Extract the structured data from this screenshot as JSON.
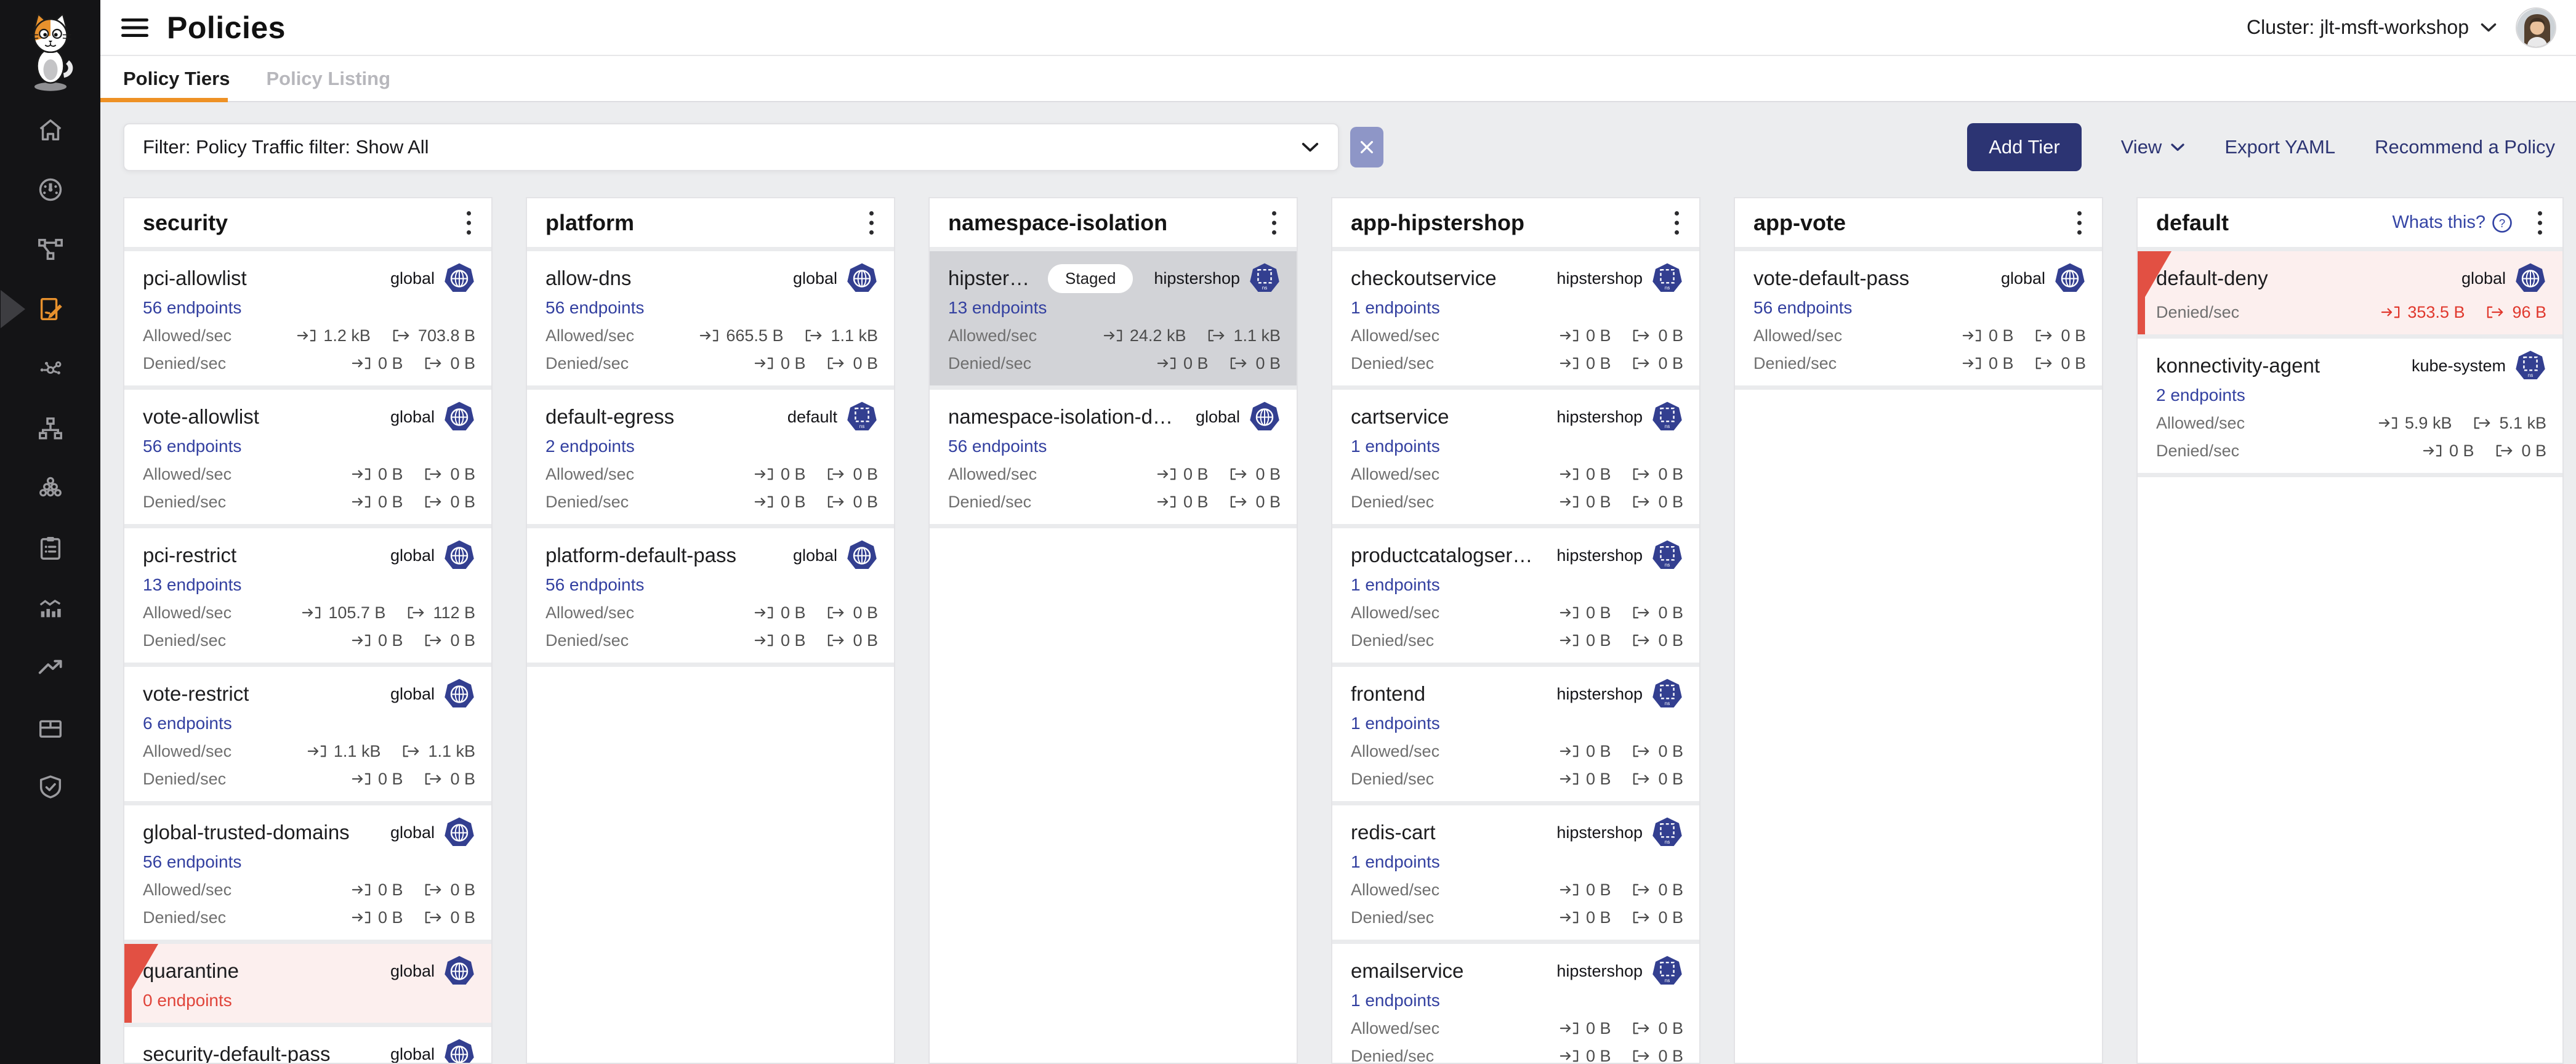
{
  "header": {
    "title": "Policies",
    "cluster_label": "Cluster: jlt-msft-workshop"
  },
  "tabs": [
    {
      "label": "Policy Tiers",
      "active": true
    },
    {
      "label": "Policy Listing",
      "active": false
    }
  ],
  "filter": {
    "value": "Filter: Policy Traffic filter: Show All"
  },
  "toolbar": {
    "add_tier": "Add Tier",
    "view": "View",
    "export_yaml": "Export YAML",
    "recommend": "Recommend a Policy"
  },
  "colors": {
    "accent_orange": "#EE9125",
    "brand_navy": "#2C3473",
    "link_indigo": "#3340A0",
    "badge_navy": "#333F90",
    "danger_red": "#E0443A",
    "alert_card_bg": "#FCEFEE",
    "staged_card_bg": "#D2D3D7"
  },
  "icons": {
    "sidebar": [
      "home-icon",
      "dashboard-icon",
      "service-graph-icon",
      "policies-icon",
      "network-sets-icon",
      "endpoints-icon",
      "workloads-icon",
      "compliance-icon",
      "activity-icon",
      "trends-icon",
      "packages-icon",
      "threat-defense-icon"
    ],
    "chrome": [
      "menu-icon",
      "chevron-down-icon",
      "user-avatar",
      "close-icon"
    ],
    "cards": [
      "ingress-icon",
      "egress-icon",
      "global-badge-icon",
      "namespace-badge-icon",
      "kebab-menu-icon",
      "question-circle-icon"
    ]
  },
  "tiers": [
    {
      "name": "security",
      "cards": [
        {
          "name": "pci-allowlist",
          "scope": "global",
          "scope_type": "global",
          "endpoints": "56 endpoints",
          "rows": [
            {
              "label": "Allowed/sec",
              "in": "1.2 kB",
              "out": "703.8 B"
            },
            {
              "label": "Denied/sec",
              "in": "0 B",
              "out": "0 B"
            }
          ]
        },
        {
          "name": "vote-allowlist",
          "scope": "global",
          "scope_type": "global",
          "endpoints": "56 endpoints",
          "rows": [
            {
              "label": "Allowed/sec",
              "in": "0 B",
              "out": "0 B"
            },
            {
              "label": "Denied/sec",
              "in": "0 B",
              "out": "0 B"
            }
          ]
        },
        {
          "name": "pci-restrict",
          "scope": "global",
          "scope_type": "global",
          "endpoints": "13 endpoints",
          "rows": [
            {
              "label": "Allowed/sec",
              "in": "105.7 B",
              "out": "112 B"
            },
            {
              "label": "Denied/sec",
              "in": "0 B",
              "out": "0 B"
            }
          ]
        },
        {
          "name": "vote-restrict",
          "scope": "global",
          "scope_type": "global",
          "endpoints": "6 endpoints",
          "rows": [
            {
              "label": "Allowed/sec",
              "in": "1.1 kB",
              "out": "1.1 kB"
            },
            {
              "label": "Denied/sec",
              "in": "0 B",
              "out": "0 B"
            }
          ]
        },
        {
          "name": "global-trusted-domains",
          "scope": "global",
          "scope_type": "global",
          "endpoints": "56 endpoints",
          "rows": [
            {
              "label": "Allowed/sec",
              "in": "0 B",
              "out": "0 B"
            },
            {
              "label": "Denied/sec",
              "in": "0 B",
              "out": "0 B"
            }
          ]
        },
        {
          "name": "quarantine",
          "scope": "global",
          "scope_type": "global",
          "alert": true,
          "endpoints": "0 endpoints",
          "rows": []
        },
        {
          "name": "security-default-pass",
          "scope": "global",
          "scope_type": "global",
          "rows": []
        }
      ]
    },
    {
      "name": "platform",
      "cards": [
        {
          "name": "allow-dns",
          "scope": "global",
          "scope_type": "global",
          "endpoints": "56 endpoints",
          "rows": [
            {
              "label": "Allowed/sec",
              "in": "665.5 B",
              "out": "1.1 kB"
            },
            {
              "label": "Denied/sec",
              "in": "0 B",
              "out": "0 B"
            }
          ]
        },
        {
          "name": "default-egress",
          "scope": "default",
          "scope_type": "namespace",
          "endpoints": "2 endpoints",
          "rows": [
            {
              "label": "Allowed/sec",
              "in": "0 B",
              "out": "0 B"
            },
            {
              "label": "Denied/sec",
              "in": "0 B",
              "out": "0 B"
            }
          ]
        },
        {
          "name": "platform-default-pass",
          "scope": "global",
          "scope_type": "global",
          "endpoints": "56 endpoints",
          "rows": [
            {
              "label": "Allowed/sec",
              "in": "0 B",
              "out": "0 B"
            },
            {
              "label": "Denied/sec",
              "in": "0 B",
              "out": "0 B"
            }
          ]
        }
      ]
    },
    {
      "name": "namespace-isolation",
      "cards": [
        {
          "name": "hipstershop-gh…",
          "staged": true,
          "staged_label": "Staged",
          "scope": "hipstershop",
          "scope_type": "namespace",
          "endpoints": "13 endpoints",
          "rows": [
            {
              "label": "Allowed/sec",
              "in": "24.2 kB",
              "out": "1.1 kB"
            },
            {
              "label": "Denied/sec",
              "in": "0 B",
              "out": "0 B"
            }
          ]
        },
        {
          "name": "namespace-isolation-default-p…",
          "scope": "global",
          "scope_type": "global",
          "endpoints": "56 endpoints",
          "rows": [
            {
              "label": "Allowed/sec",
              "in": "0 B",
              "out": "0 B"
            },
            {
              "label": "Denied/sec",
              "in": "0 B",
              "out": "0 B"
            }
          ]
        }
      ]
    },
    {
      "name": "app-hipstershop",
      "cards": [
        {
          "name": "checkoutservice",
          "scope": "hipstershop",
          "scope_type": "namespace",
          "endpoints": "1 endpoints",
          "rows": [
            {
              "label": "Allowed/sec",
              "in": "0 B",
              "out": "0 B"
            },
            {
              "label": "Denied/sec",
              "in": "0 B",
              "out": "0 B"
            }
          ]
        },
        {
          "name": "cartservice",
          "scope": "hipstershop",
          "scope_type": "namespace",
          "endpoints": "1 endpoints",
          "rows": [
            {
              "label": "Allowed/sec",
              "in": "0 B",
              "out": "0 B"
            },
            {
              "label": "Denied/sec",
              "in": "0 B",
              "out": "0 B"
            }
          ]
        },
        {
          "name": "productcatalogservice",
          "scope": "hipstershop",
          "scope_type": "namespace",
          "endpoints": "1 endpoints",
          "rows": [
            {
              "label": "Allowed/sec",
              "in": "0 B",
              "out": "0 B"
            },
            {
              "label": "Denied/sec",
              "in": "0 B",
              "out": "0 B"
            }
          ]
        },
        {
          "name": "frontend",
          "scope": "hipstershop",
          "scope_type": "namespace",
          "endpoints": "1 endpoints",
          "rows": [
            {
              "label": "Allowed/sec",
              "in": "0 B",
              "out": "0 B"
            },
            {
              "label": "Denied/sec",
              "in": "0 B",
              "out": "0 B"
            }
          ]
        },
        {
          "name": "redis-cart",
          "scope": "hipstershop",
          "scope_type": "namespace",
          "endpoints": "1 endpoints",
          "rows": [
            {
              "label": "Allowed/sec",
              "in": "0 B",
              "out": "0 B"
            },
            {
              "label": "Denied/sec",
              "in": "0 B",
              "out": "0 B"
            }
          ]
        },
        {
          "name": "emailservice",
          "scope": "hipstershop",
          "scope_type": "namespace",
          "endpoints": "1 endpoints",
          "rows": [
            {
              "label": "Allowed/sec",
              "in": "0 B",
              "out": "0 B"
            },
            {
              "label": "Denied/sec",
              "in": "0 B",
              "out": "0 B"
            }
          ]
        }
      ]
    },
    {
      "name": "app-vote",
      "cards": [
        {
          "name": "vote-default-pass",
          "scope": "global",
          "scope_type": "global",
          "endpoints": "56 endpoints",
          "rows": [
            {
              "label": "Allowed/sec",
              "in": "0 B",
              "out": "0 B"
            },
            {
              "label": "Denied/sec",
              "in": "0 B",
              "out": "0 B"
            }
          ]
        }
      ]
    },
    {
      "name": "default",
      "help_label": "Whats this?",
      "cards": [
        {
          "name": "default-deny",
          "scope": "global",
          "scope_type": "global",
          "alert": true,
          "rows": [
            {
              "label": "Denied/sec",
              "in": "353.5 B",
              "out": "96 B",
              "danger": true
            }
          ]
        },
        {
          "name": "konnectivity-agent",
          "scope": "kube-system",
          "scope_type": "namespace",
          "endpoints": "2 endpoints",
          "rows": [
            {
              "label": "Allowed/sec",
              "in": "5.9 kB",
              "out": "5.1 kB"
            },
            {
              "label": "Denied/sec",
              "in": "0 B",
              "out": "0 B"
            }
          ]
        }
      ]
    }
  ]
}
